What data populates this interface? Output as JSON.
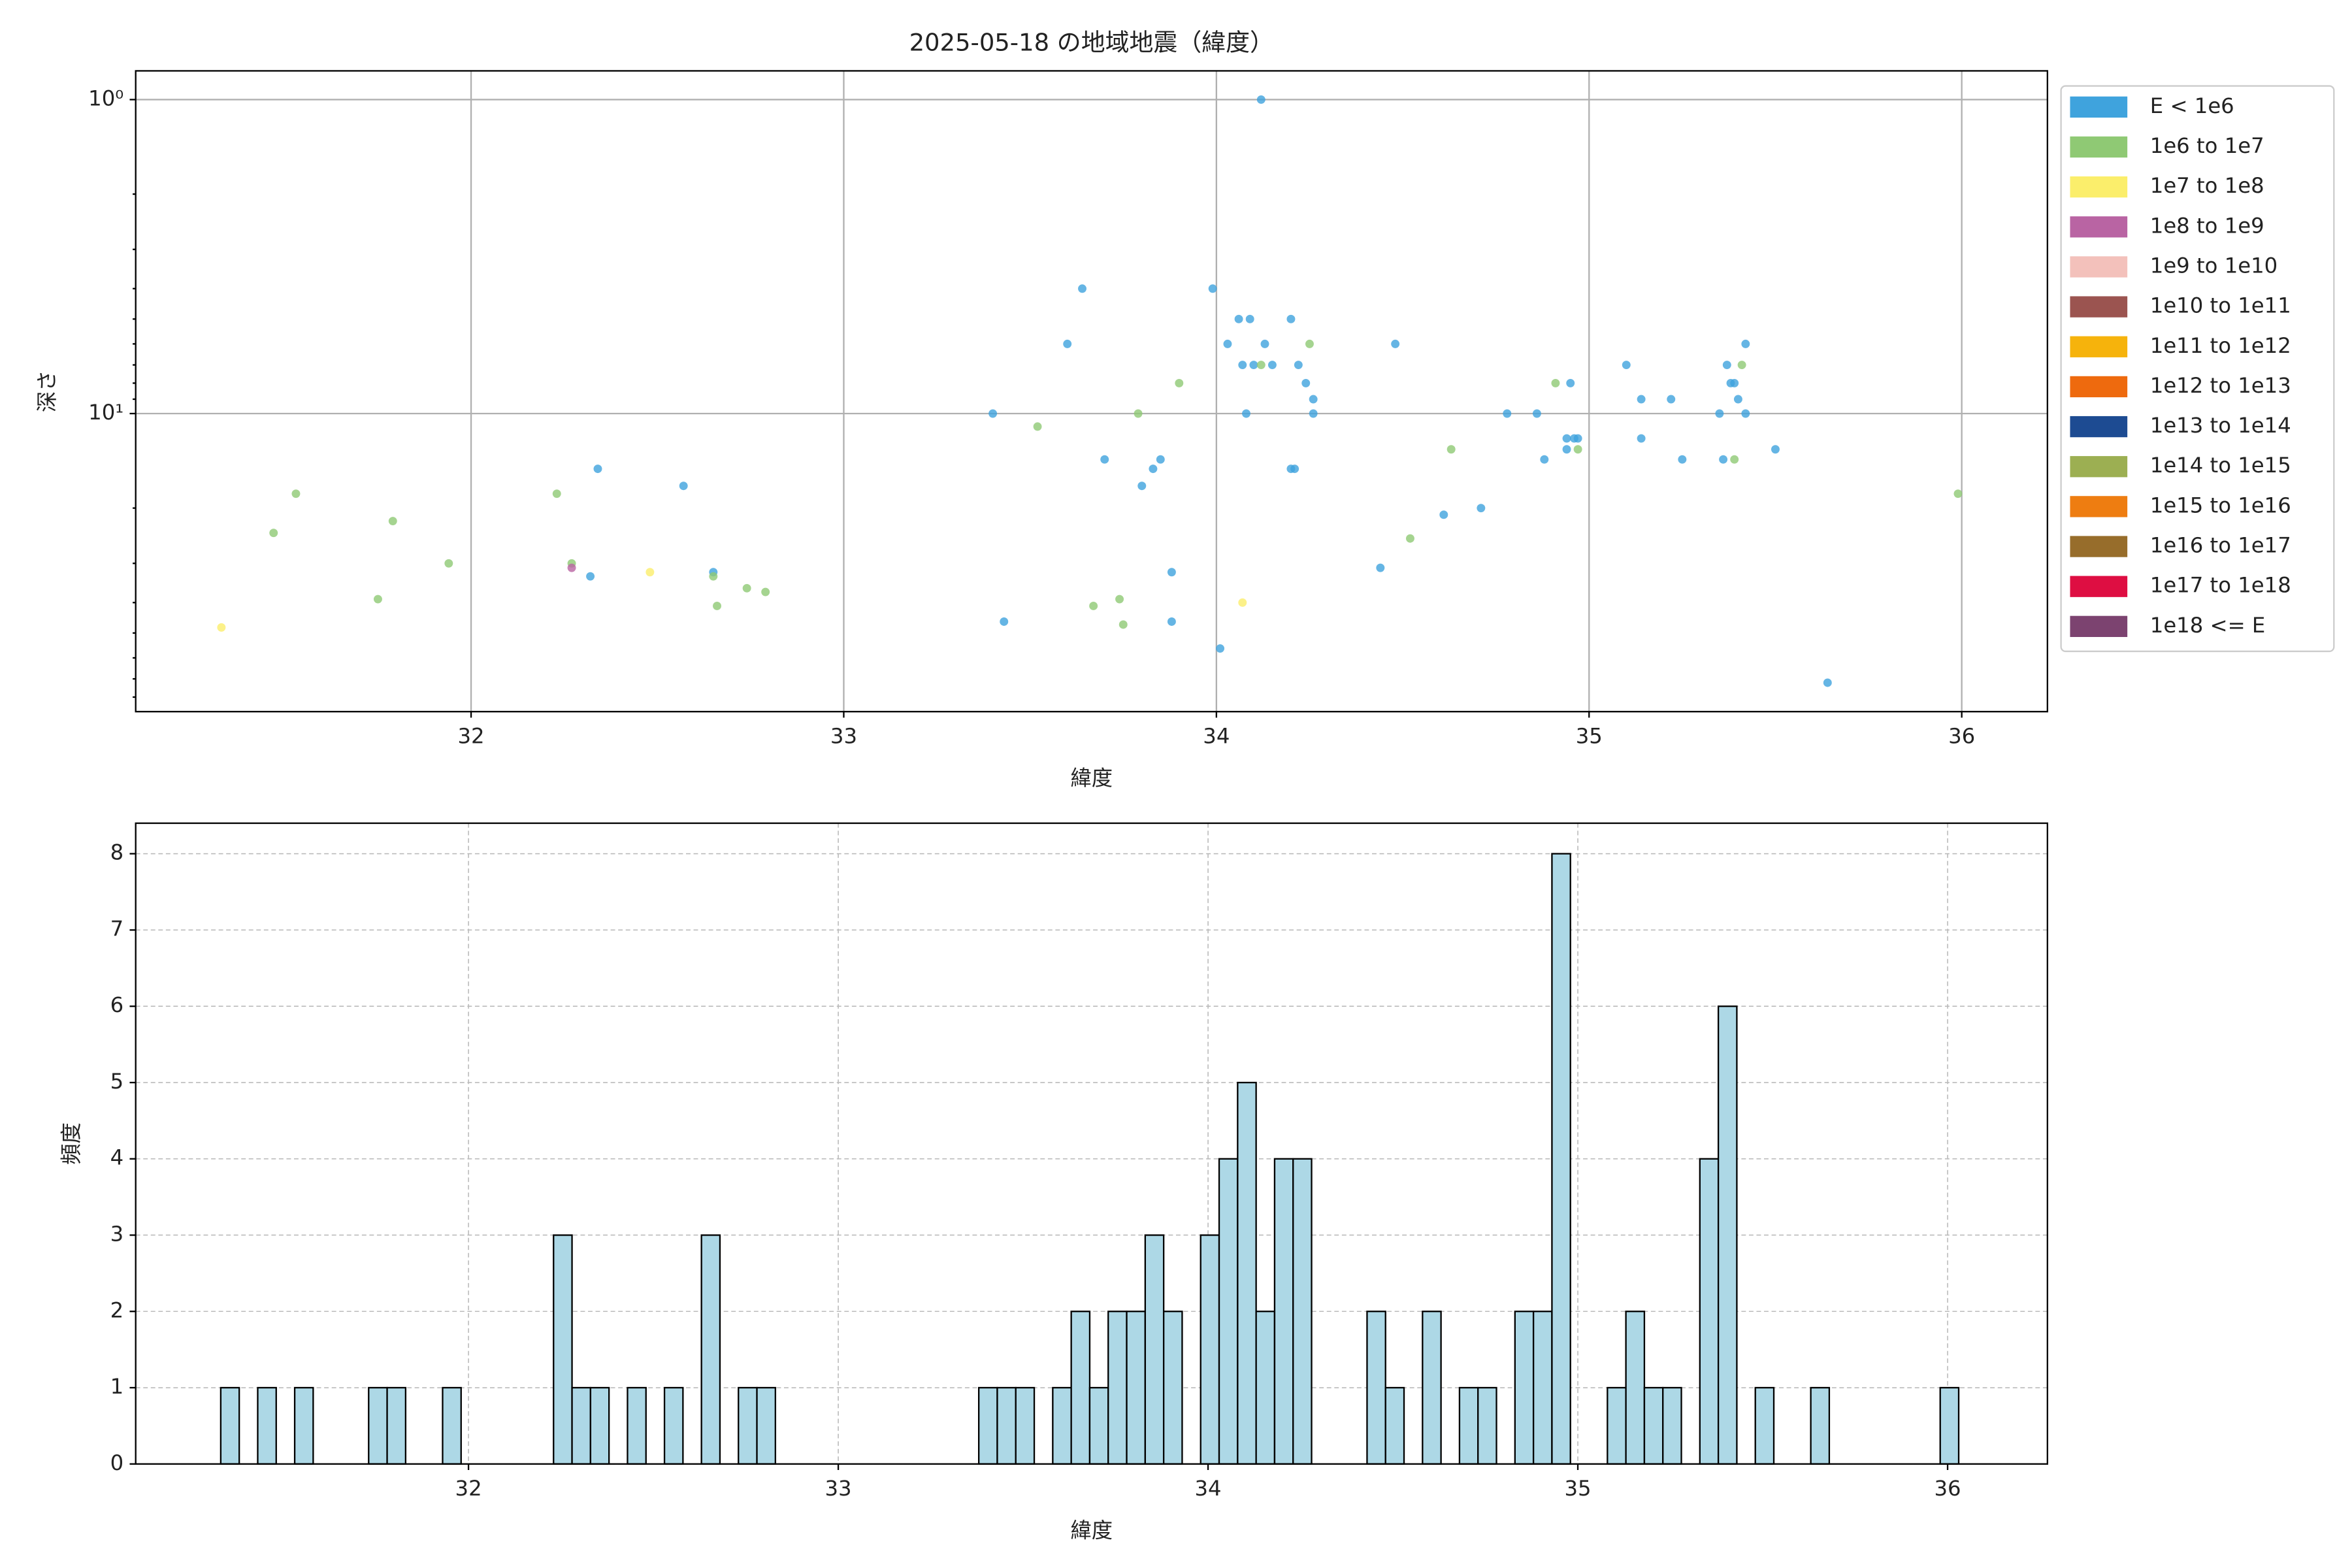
{
  "chart_data": [
    {
      "type": "scatter",
      "title": "2025-05-18 の地域地震（緯度）",
      "xlabel": "緯度",
      "ylabel": "深さ",
      "xlim": [
        31.1,
        36.23
      ],
      "xticks": [
        32,
        33,
        34,
        35,
        36
      ],
      "ylim": [
        89,
        0.81
      ],
      "log_y": true,
      "yticks": [
        {
          "value": 1,
          "label": "10⁰"
        },
        {
          "value": 10,
          "label": "10¹"
        }
      ],
      "yminorticks": [
        2,
        3,
        4,
        5,
        6,
        7,
        8,
        9,
        20,
        30,
        40,
        50,
        60,
        70,
        80
      ],
      "grid": "solid",
      "legend": "outside-right",
      "series": [
        {
          "name": "E < 1e6",
          "color": "#3fa3dd",
          "x": [
            32.32,
            32.34,
            32.57,
            32.65,
            33.4,
            33.43,
            33.6,
            33.64,
            33.7,
            33.8,
            33.83,
            33.85,
            33.88,
            33.88,
            33.99,
            34.01,
            34.03,
            34.06,
            34.07,
            34.08,
            34.09,
            34.1,
            34.12,
            34.13,
            34.15,
            34.2,
            34.2,
            34.21,
            34.22,
            34.24,
            34.26,
            34.26,
            34.44,
            34.48,
            34.61,
            34.71,
            34.78,
            34.86,
            34.88,
            34.94,
            34.94,
            34.95,
            34.96,
            34.97,
            35.1,
            35.14,
            35.14,
            35.22,
            35.25,
            35.35,
            35.36,
            35.37,
            35.38,
            35.39,
            35.4,
            35.42,
            35.42,
            35.5,
            35.64
          ],
          "values": [
            33,
            15,
            17,
            32,
            10,
            46,
            6,
            4,
            14,
            17,
            15,
            14,
            32,
            46,
            4,
            56,
            6,
            5,
            7,
            10,
            5,
            7,
            1,
            6,
            7,
            5,
            15,
            15,
            7,
            8,
            9,
            10,
            31,
            6,
            21,
            20,
            10,
            10,
            14,
            13,
            12,
            8,
            12,
            12,
            7,
            9,
            12,
            9,
            14,
            10,
            14,
            7,
            8,
            8,
            9,
            6,
            10,
            13,
            72
          ]
        },
        {
          "name": "1e6 to 1e7",
          "color": "#8fc974",
          "x": [
            31.47,
            31.53,
            31.75,
            31.79,
            31.94,
            32.23,
            32.27,
            32.65,
            32.66,
            32.74,
            32.79,
            33.52,
            33.67,
            33.74,
            33.75,
            33.79,
            33.9,
            34.12,
            34.25,
            34.52,
            34.63,
            34.91,
            34.97,
            35.39,
            35.41,
            35.99
          ],
          "values": [
            24,
            18,
            39,
            22,
            30,
            18,
            30,
            33,
            41,
            36,
            37,
            11,
            41,
            39,
            47,
            10,
            8,
            7,
            6,
            25,
            13,
            8,
            13,
            14,
            7,
            18
          ]
        },
        {
          "name": "1e7 to 1e8",
          "color": "#fbee6b",
          "x": [
            31.33,
            32.48,
            34.07
          ],
          "values": [
            48,
            32,
            40
          ]
        },
        {
          "name": "1e8 to 1e9",
          "color": "#b964a3",
          "x": [
            32.27
          ],
          "values": [
            31
          ]
        },
        {
          "name": "1e9 to 1e10",
          "color": "#f3c1bb",
          "x": [],
          "values": []
        },
        {
          "name": "1e10 to 1e11",
          "color": "#9b5450",
          "x": [],
          "values": []
        },
        {
          "name": "1e11 to 1e12",
          "color": "#f6b30c",
          "x": [],
          "values": []
        },
        {
          "name": "1e12 to 1e13",
          "color": "#ee6a0e",
          "x": [],
          "values": []
        },
        {
          "name": "1e13 to 1e14",
          "color": "#1d4b92",
          "x": [],
          "values": []
        },
        {
          "name": "1e14 to 1e15",
          "color": "#9caf52",
          "x": [],
          "values": []
        },
        {
          "name": "1e15 to 1e16",
          "color": "#ee7d11",
          "x": [],
          "values": []
        },
        {
          "name": "1e16 to 1e17",
          "color": "#976d2b",
          "x": [],
          "values": []
        },
        {
          "name": "1e17 to 1e18",
          "color": "#de0e42",
          "x": [],
          "values": []
        },
        {
          "name": "1e18 <= E",
          "color": "#7c4370",
          "x": [],
          "values": []
        }
      ]
    },
    {
      "type": "histogram",
      "xlabel": "緯度",
      "ylabel": "頻度",
      "color": "#add8e6",
      "edgecolor": "#000000",
      "xlim": [
        31.1,
        36.27
      ],
      "xticks": [
        32,
        33,
        34,
        35,
        36
      ],
      "ylim": [
        0,
        8.4
      ],
      "yticks": [
        0,
        1,
        2,
        3,
        4,
        5,
        6,
        7,
        8
      ],
      "grid": "dashed",
      "bins": [
        31.33,
        31.38,
        31.43,
        31.48,
        31.53,
        31.58,
        31.63,
        31.68,
        31.73,
        31.78,
        31.83,
        31.88,
        31.93,
        31.98,
        32.03,
        32.08,
        32.13,
        32.18,
        32.23,
        32.28,
        32.33,
        32.38,
        32.43,
        32.48,
        32.53,
        32.58,
        32.63,
        32.68,
        32.73,
        32.78,
        32.83,
        32.88,
        32.93,
        32.98,
        33.03,
        33.08,
        33.13,
        33.18,
        33.23,
        33.28,
        33.33,
        33.38,
        33.43,
        33.48,
        33.53,
        33.58,
        33.63,
        33.68,
        33.73,
        33.78,
        33.83,
        33.88,
        33.93,
        33.98,
        34.03,
        34.08,
        34.13,
        34.18,
        34.23,
        34.28,
        34.33,
        34.38,
        34.43,
        34.48,
        34.53,
        34.58,
        34.63,
        34.68,
        34.73,
        34.78,
        34.83,
        34.88,
        34.93,
        34.98,
        35.03,
        35.08,
        35.13,
        35.18,
        35.23,
        35.28,
        35.33,
        35.38,
        35.43,
        35.48,
        35.53,
        35.58,
        35.63,
        35.68,
        35.73,
        35.78,
        35.83,
        35.88,
        35.93,
        35.98,
        36.03
      ],
      "values": [
        1,
        0,
        1,
        0,
        1,
        0,
        0,
        0,
        1,
        1,
        0,
        0,
        1,
        0,
        0,
        0,
        0,
        0,
        3,
        1,
        1,
        0,
        1,
        0,
        1,
        0,
        3,
        0,
        1,
        1,
        0,
        0,
        0,
        0,
        0,
        0,
        0,
        0,
        0,
        0,
        0,
        1,
        1,
        1,
        0,
        1,
        2,
        1,
        2,
        2,
        3,
        2,
        0,
        3,
        4,
        5,
        2,
        4,
        4,
        0,
        0,
        0,
        2,
        1,
        0,
        2,
        0,
        1,
        1,
        0,
        2,
        2,
        8,
        0,
        0,
        1,
        2,
        1,
        1,
        0,
        4,
        6,
        0,
        1,
        0,
        0,
        1,
        0,
        0,
        0,
        0,
        0,
        0,
        1
      ]
    }
  ]
}
